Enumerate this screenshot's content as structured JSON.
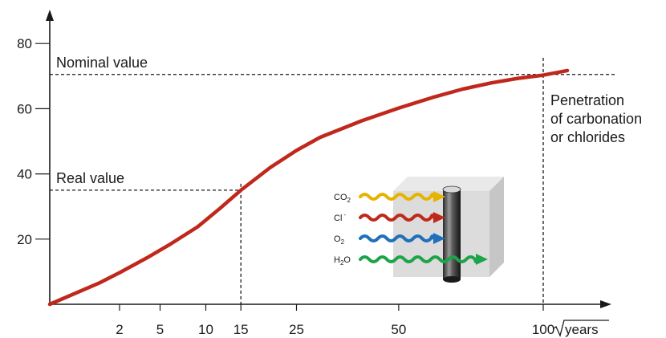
{
  "chart_data": {
    "type": "line",
    "xlabel": "years",
    "x_scale": "sqrt",
    "xlim": [
      0,
      104
    ],
    "ylim": [
      0,
      84
    ],
    "x_ticks": [
      2,
      5,
      10,
      15,
      25,
      50,
      100
    ],
    "y_ticks": [
      20,
      40,
      60,
      80
    ],
    "grid": false,
    "series": [
      {
        "color": "#c0281c",
        "x": [
          0,
          1,
          2,
          4,
          6,
          9,
          12,
          15,
          20,
          25,
          30,
          40,
          50,
          60,
          70,
          80,
          90,
          100,
          110
        ],
        "values": [
          0,
          6.5,
          9.7,
          14.5,
          18.5,
          23.8,
          29.6,
          35,
          42,
          47.2,
          51.2,
          56.3,
          60.2,
          63.4,
          66,
          67.9,
          69.3,
          70.3,
          71.7
        ]
      }
    ],
    "reference_lines": [
      {
        "label": "Nominal value",
        "y": 70.5,
        "x": 100
      },
      {
        "label": "Real value",
        "y": 35,
        "x": 15
      }
    ],
    "annotation": [
      "Penetration",
      "of carbonation",
      "or chlorides"
    ],
    "inset": {
      "species": [
        {
          "base": "CO",
          "sub": "2",
          "sup": "",
          "color": "#e6b400"
        },
        {
          "base": "Cl",
          "sub": "",
          "sup": "-",
          "color": "#c0281c"
        },
        {
          "base": "O",
          "sub": "2",
          "sup": "",
          "color": "#1f6fba"
        },
        {
          "base": "H",
          "sub": "2",
          "sup": "",
          "tail": "O",
          "color": "#1fa34a"
        }
      ]
    },
    "axis_color": "#1a1a1a",
    "line_color": "#c0281c"
  }
}
